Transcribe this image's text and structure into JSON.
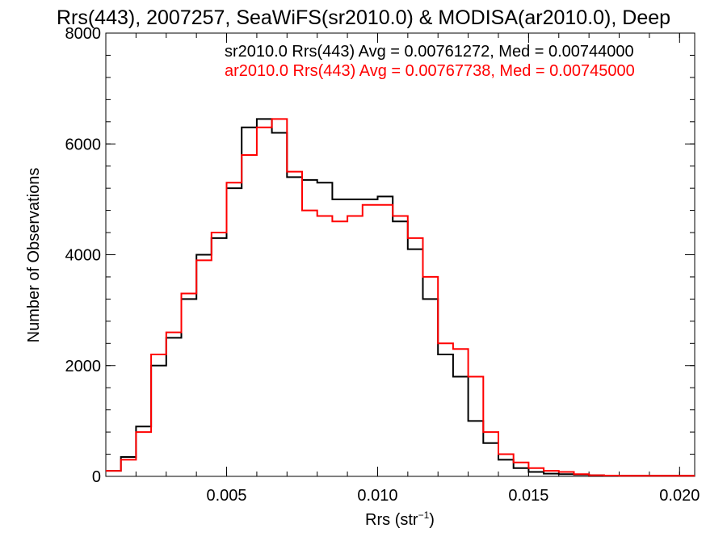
{
  "chart_data": {
    "type": "line",
    "title": "Rrs(443), 2007257, SeaWiFS(sr2010.0) & MODISA(ar2010.0), Deep",
    "xlabel": "Rrs (str",
    "xlabel_sup": "−1",
    "xlabel_end": ")",
    "ylabel": "Number of Observations",
    "xlim": [
      0.001,
      0.0205
    ],
    "ylim": [
      0,
      8000
    ],
    "x_ticks": [
      0.005,
      0.01,
      0.015,
      0.02
    ],
    "x_tick_labels": [
      "0.005",
      "0.010",
      "0.015",
      "0.020"
    ],
    "y_ticks": [
      0,
      2000,
      4000,
      6000,
      8000
    ],
    "y_tick_labels": [
      "0",
      "2000",
      "4000",
      "6000",
      "8000"
    ],
    "grid": false,
    "legend_position": "top-right",
    "series": [
      {
        "name": "sr2010.0 Rrs(443) Avg = 0.00761272, Med = 0.00744000",
        "color": "#000000",
        "x": [
          0.001,
          0.0015,
          0.002,
          0.0025,
          0.003,
          0.0035,
          0.004,
          0.0045,
          0.005,
          0.0055,
          0.006,
          0.0065,
          0.007,
          0.0075,
          0.008,
          0.0085,
          0.009,
          0.0095,
          0.01,
          0.0105,
          0.011,
          0.0115,
          0.012,
          0.0125,
          0.013,
          0.0135,
          0.014,
          0.0145,
          0.015,
          0.0155,
          0.016,
          0.0165,
          0.017,
          0.0175,
          0.018,
          0.019,
          0.0205
        ],
        "values": [
          100,
          350,
          900,
          2000,
          2500,
          3200,
          4000,
          4300,
          5200,
          6300,
          6450,
          6200,
          5400,
          5350,
          5300,
          5000,
          5000,
          5000,
          5050,
          4600,
          4100,
          3200,
          2200,
          1800,
          1000,
          600,
          300,
          150,
          80,
          50,
          40,
          30,
          20,
          15,
          10,
          10,
          10
        ]
      },
      {
        "name": "ar2010.0 Rrs(443) Avg = 0.00767738, Med = 0.00745000",
        "color": "#ff0000",
        "x": [
          0.001,
          0.0015,
          0.002,
          0.0025,
          0.003,
          0.0035,
          0.004,
          0.0045,
          0.005,
          0.0055,
          0.006,
          0.0065,
          0.007,
          0.0075,
          0.008,
          0.0085,
          0.009,
          0.0095,
          0.01,
          0.0105,
          0.011,
          0.0115,
          0.012,
          0.0125,
          0.013,
          0.0135,
          0.014,
          0.0145,
          0.015,
          0.0155,
          0.016,
          0.0165,
          0.017,
          0.0175,
          0.018,
          0.019,
          0.0205
        ],
        "values": [
          100,
          300,
          800,
          2200,
          2600,
          3300,
          3900,
          4400,
          5300,
          5800,
          6300,
          6450,
          5500,
          4800,
          4700,
          4600,
          4700,
          4900,
          4900,
          4700,
          4300,
          3600,
          2400,
          2300,
          1800,
          800,
          400,
          250,
          150,
          100,
          80,
          40,
          20,
          15,
          10,
          10,
          10
        ]
      }
    ]
  }
}
